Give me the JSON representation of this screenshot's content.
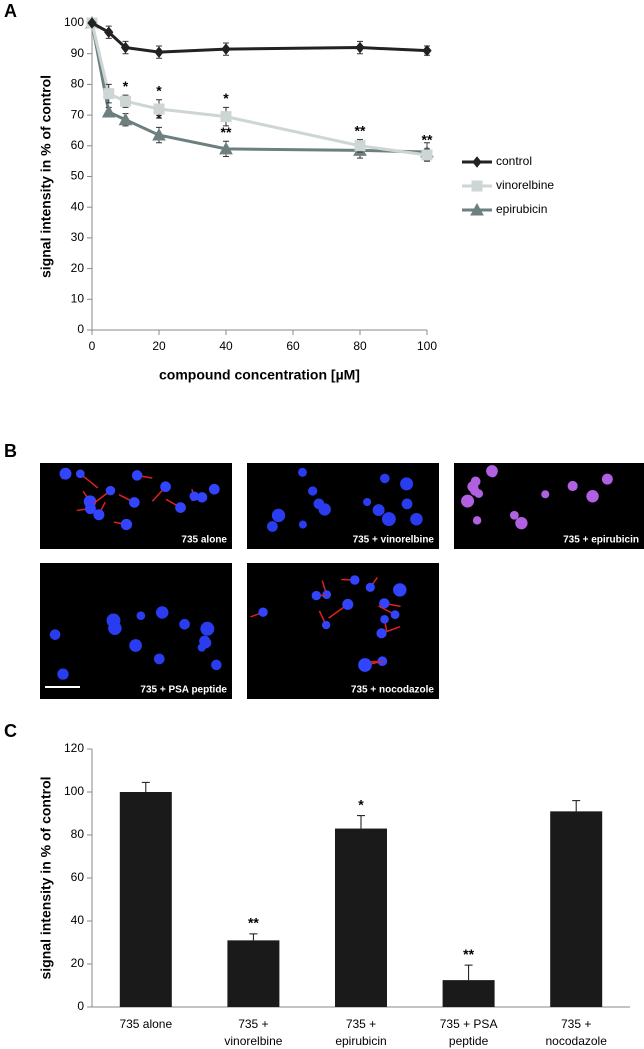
{
  "chart_data": [
    {
      "type": "line",
      "panel_label": "A",
      "x": [
        0,
        5,
        10,
        20,
        40,
        80,
        100
      ],
      "xlim": [
        0,
        100
      ],
      "xticks": [
        0,
        20,
        40,
        60,
        80,
        100
      ],
      "ylim": [
        0,
        100
      ],
      "yticks": [
        0,
        10,
        20,
        30,
        40,
        50,
        60,
        70,
        80,
        90,
        100
      ],
      "xlabel": "compound concentration [µM]",
      "ylabel": "signal intensity in % of control",
      "legend": "right",
      "series": [
        {
          "name": "control",
          "color": "#222222",
          "marker": "diamond",
          "values": [
            100,
            97,
            92,
            90.5,
            91.5,
            92,
            91
          ],
          "errors": [
            0,
            2,
            2,
            2,
            2,
            2,
            1.5
          ],
          "annotations": [
            null,
            null,
            null,
            null,
            null,
            null,
            null
          ]
        },
        {
          "name": "vinorelbine",
          "color": "#cdd5d5",
          "marker": "square",
          "values": [
            100,
            77,
            74.5,
            72,
            69.5,
            60,
            57
          ],
          "errors": [
            0,
            3,
            2,
            3,
            3,
            2,
            2
          ],
          "annotations": [
            null,
            null,
            "*",
            "*",
            "*",
            "**",
            "**"
          ]
        },
        {
          "name": "epirubicin",
          "color": "#6e7f7f",
          "marker": "triangle",
          "values": [
            100,
            71,
            68.5,
            63.5,
            59,
            58.5,
            58
          ],
          "errors": [
            0,
            1.5,
            2,
            2.5,
            2.5,
            2.5,
            3
          ],
          "annotations": [
            null,
            null,
            "*",
            "*",
            "**",
            null,
            null
          ]
        }
      ]
    },
    {
      "type": "bar",
      "panel_label": "C",
      "categories": [
        [
          "735 alone"
        ],
        [
          "735 +",
          "vinorelbine"
        ],
        [
          "735 +",
          "epirubicin"
        ],
        [
          "735 + PSA",
          "peptide"
        ],
        [
          "735 +",
          "nocodazole"
        ]
      ],
      "values": [
        100,
        31,
        83,
        12.5,
        91
      ],
      "errors": [
        4.5,
        3,
        6,
        7,
        5
      ],
      "annotations": [
        null,
        "**",
        "*",
        "**",
        null
      ],
      "color": "#1a1a1a",
      "ylim": [
        0,
        120
      ],
      "yticks": [
        0,
        20,
        40,
        60,
        80,
        100,
        120
      ],
      "ylabel": "signal intensity in % of control"
    }
  ],
  "image_panel": {
    "panel_label": "B",
    "captions": [
      "735 alone",
      "735 + vinorelbine",
      "735 + epirubicin",
      "735 + PSA peptide",
      "735 + nocodazole"
    ]
  }
}
